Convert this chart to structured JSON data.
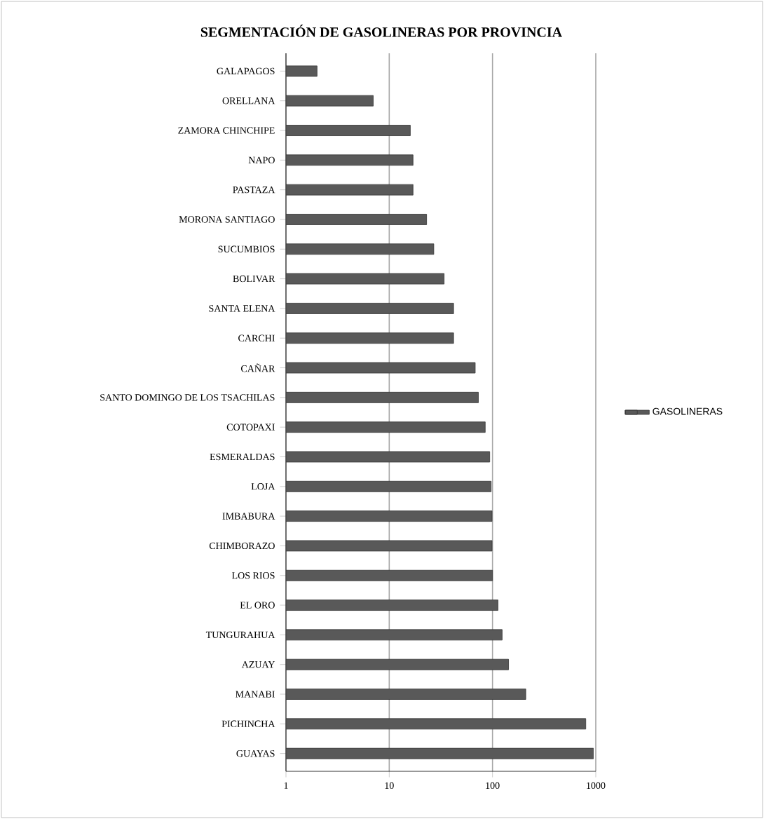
{
  "chart_data": {
    "type": "bar",
    "orientation": "horizontal",
    "title": "SEGMENTACIÓN DE GASOLINERAS POR PROVINCIA",
    "categories": [
      "GALAPAGOS",
      "ORELLANA",
      "ZAMORA CHINCHIPE",
      "NAPO",
      "PASTAZA",
      "MORONA SANTIAGO",
      "SUCUMBIOS",
      "BOLIVAR",
      "SANTA ELENA",
      "CARCHI",
      "CAÑAR",
      "SANTO DOMINGO DE LOS TSACHILAS",
      "COTOPAXI",
      "ESMERALDAS",
      "LOJA",
      "IMBABURA",
      "CHIMBORAZO",
      "LOS RIOS",
      "EL ORO",
      "TUNGURAHUA",
      "AZUAY",
      "MANABI",
      "PICHINCHA",
      "GUAYAS"
    ],
    "series": [
      {
        "name": "GASOLINERAS",
        "color": "#595959",
        "values": [
          2,
          7,
          16,
          17,
          17,
          23,
          27,
          34,
          42,
          42,
          68,
          73,
          85,
          94,
          97,
          99,
          99,
          100,
          113,
          124,
          143,
          210,
          800,
          950
        ]
      }
    ],
    "log": "x",
    "xlim": [
      1,
      1000
    ],
    "xticks": [
      1,
      10,
      100,
      1000
    ],
    "grid": "x",
    "legend": "right"
  }
}
